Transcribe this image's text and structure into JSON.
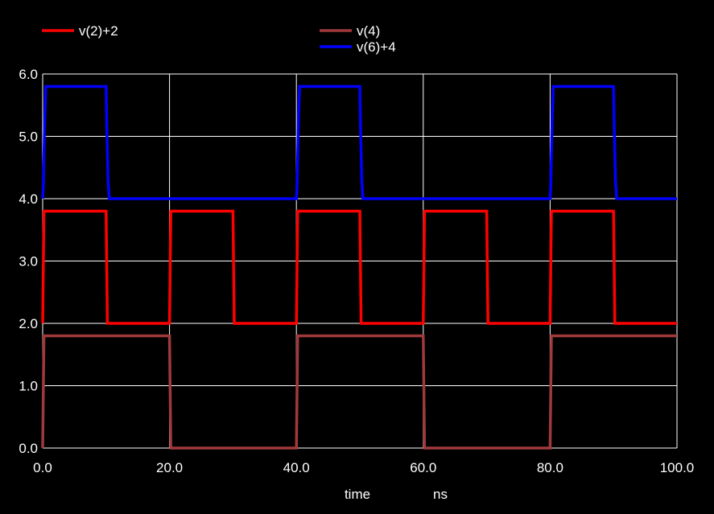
{
  "chart_data": {
    "type": "line",
    "title": "",
    "xlabel": "time",
    "xunit": "ns",
    "ylabel": "",
    "xlim": [
      0,
      100
    ],
    "ylim": [
      0,
      6
    ],
    "x_ticks": [
      "0.0",
      "20.0",
      "40.0",
      "60.0",
      "80.0",
      "100.0"
    ],
    "y_ticks": [
      "0.0",
      "1.0",
      "2.0",
      "3.0",
      "4.0",
      "5.0",
      "6.0"
    ],
    "grid": true,
    "legend_position": "top",
    "background": "#000000",
    "grid_color": "#ffffff",
    "series": [
      {
        "name": "v(2)+2",
        "color": "#ff0000",
        "points": [
          [
            0,
            2.0
          ],
          [
            0.2,
            3.8
          ],
          [
            10,
            3.8
          ],
          [
            10.2,
            2.0
          ],
          [
            20,
            2.0
          ],
          [
            20.2,
            3.8
          ],
          [
            30,
            3.8
          ],
          [
            30.2,
            2.0
          ],
          [
            40,
            2.0
          ],
          [
            40.2,
            3.8
          ],
          [
            50,
            3.8
          ],
          [
            50.2,
            2.0
          ],
          [
            60,
            2.0
          ],
          [
            60.2,
            3.8
          ],
          [
            70,
            3.8
          ],
          [
            70.2,
            2.0
          ],
          [
            80,
            2.0
          ],
          [
            80.2,
            3.8
          ],
          [
            90,
            3.8
          ],
          [
            90.2,
            2.0
          ],
          [
            100,
            2.0
          ]
        ]
      },
      {
        "name": "v(4)",
        "color": "#a0393b",
        "points": [
          [
            0,
            0
          ],
          [
            0.2,
            1.8
          ],
          [
            20,
            1.8
          ],
          [
            20.2,
            0
          ],
          [
            40,
            0
          ],
          [
            40.2,
            1.8
          ],
          [
            60,
            1.8
          ],
          [
            60.2,
            0
          ],
          [
            80,
            0
          ],
          [
            80.2,
            1.8
          ],
          [
            100,
            1.8
          ]
        ]
      },
      {
        "name": "v(6)+4",
        "color": "#0000ff",
        "points": [
          [
            0,
            4.0
          ],
          [
            0.1,
            4.2
          ],
          [
            0.3,
            5.2
          ],
          [
            0.5,
            5.8
          ],
          [
            10,
            5.8
          ],
          [
            10.1,
            5.2
          ],
          [
            10.3,
            4.3
          ],
          [
            10.5,
            4.0
          ],
          [
            40,
            4.0
          ],
          [
            40.1,
            4.2
          ],
          [
            40.3,
            5.2
          ],
          [
            40.5,
            5.8
          ],
          [
            50,
            5.8
          ],
          [
            50.1,
            5.2
          ],
          [
            50.3,
            4.3
          ],
          [
            50.5,
            4.0
          ],
          [
            80,
            4.0
          ],
          [
            80.1,
            4.2
          ],
          [
            80.3,
            5.2
          ],
          [
            80.5,
            5.8
          ],
          [
            90,
            5.8
          ],
          [
            90.1,
            5.2
          ],
          [
            90.3,
            4.3
          ],
          [
            90.5,
            4.0
          ],
          [
            100,
            4.0
          ]
        ]
      }
    ]
  }
}
